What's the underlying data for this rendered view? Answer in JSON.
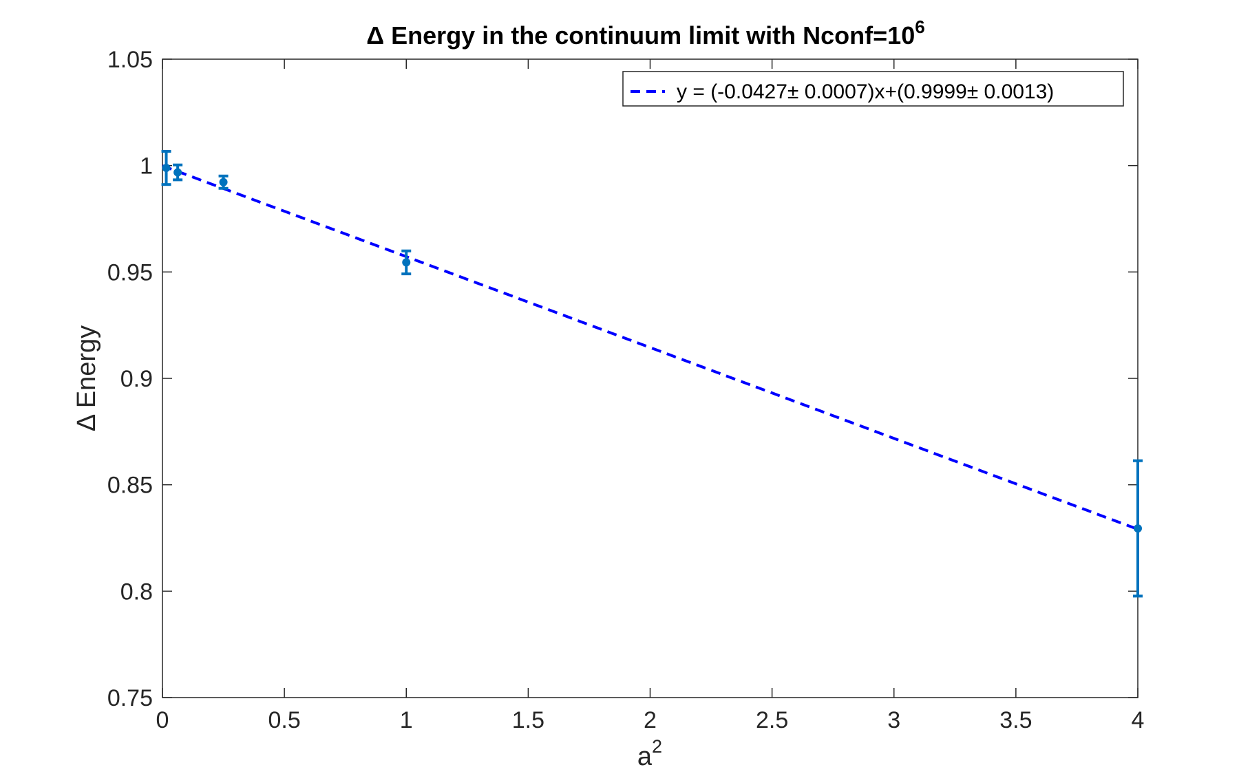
{
  "chart_data": {
    "type": "scatter",
    "title": "Δ Energy in the continuum limit with Nconf=10",
    "title_superscript": "6",
    "xlabel": "a",
    "xlabel_superscript": "2",
    "ylabel": "Δ Energy",
    "xlim": [
      0,
      4
    ],
    "ylim": [
      0.75,
      1.05
    ],
    "x_ticks": [
      0,
      0.5,
      1,
      1.5,
      2,
      2.5,
      3,
      3.5,
      4
    ],
    "x_tick_labels": [
      "0",
      "0.5",
      "1",
      "1.5",
      "2",
      "2.5",
      "3",
      "3.5",
      "4"
    ],
    "y_ticks": [
      0.75,
      0.8,
      0.85,
      0.9,
      0.95,
      1.0,
      1.05
    ],
    "y_tick_labels": [
      "0.75",
      "0.8",
      "0.85",
      "0.9",
      "0.95",
      "1",
      "1.05"
    ],
    "grid": false,
    "legend_position": "top-right",
    "points": {
      "color": "#0072BD",
      "x": [
        0.015625,
        0.0625,
        0.25,
        1,
        4
      ],
      "y": [
        0.9989,
        0.9968,
        0.9922,
        0.9545,
        0.8295
      ],
      "err": [
        0.0078,
        0.0035,
        0.0029,
        0.0054,
        0.0318
      ]
    },
    "fit": {
      "legend_label": "y = (-0.0427± 0.0007)x+(0.9999± 0.0013)",
      "slope": -0.0427,
      "intercept": 0.9999,
      "x_range": [
        0,
        4
      ],
      "color": "#0000FF",
      "style": "dashed"
    }
  }
}
